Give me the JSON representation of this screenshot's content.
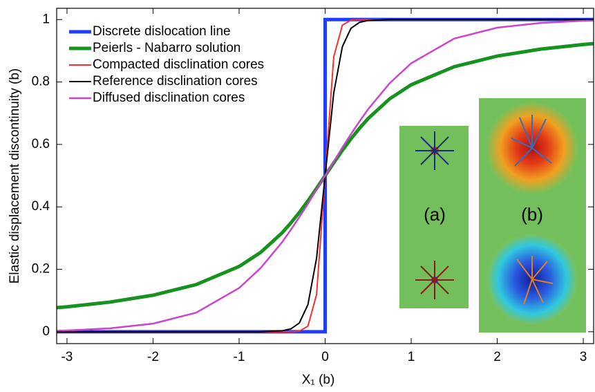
{
  "chart_data": {
    "type": "line",
    "xlabel": "X₁ (b)",
    "ylabel": "Elastic displacement discontinuity (b)",
    "xlim": [
      -3.12,
      3.12
    ],
    "ylim": [
      -0.038,
      1.036
    ],
    "xticks": [
      -3,
      -2,
      -1,
      0,
      1,
      2,
      3
    ],
    "yticks": [
      0,
      0.2,
      0.4,
      0.6,
      0.8,
      1
    ],
    "legend": "upper left",
    "annotations": [
      "(a)",
      "(b)"
    ],
    "x": [
      -3.12,
      -3,
      -2.5,
      -2,
      -1.5,
      -1,
      -0.75,
      -0.5,
      -0.4,
      -0.3,
      -0.2,
      -0.1,
      0,
      0.1,
      0.2,
      0.3,
      0.4,
      0.5,
      0.75,
      1,
      1.5,
      2,
      2.5,
      3,
      3.12
    ],
    "series": [
      {
        "name": "Discrete dislocation line",
        "color": "#1f3cff",
        "x": [
          -3.12,
          0,
          0,
          3.12
        ],
        "values": [
          0,
          0,
          1,
          1
        ]
      },
      {
        "name": "Peierls - Nabarro solution",
        "color": "#16921e",
        "values": [
          0.077,
          0.08,
          0.095,
          0.117,
          0.151,
          0.209,
          0.254,
          0.317,
          0.348,
          0.382,
          0.419,
          0.459,
          0.5,
          0.541,
          0.581,
          0.618,
          0.652,
          0.683,
          0.746,
          0.791,
          0.849,
          0.883,
          0.905,
          0.92,
          0.923
        ]
      },
      {
        "name": "Compacted disclination cores",
        "color": "#ff2a2a",
        "values": [
          0,
          0,
          0,
          0,
          0,
          0,
          0,
          0,
          0,
          0.002,
          0.018,
          0.119,
          0.5,
          0.881,
          0.982,
          0.998,
          1,
          1,
          1,
          1,
          1,
          1,
          1,
          1,
          1
        ]
      },
      {
        "name": "Reference disclination cores",
        "color": "#000000",
        "values": [
          0,
          0,
          0,
          0,
          0,
          0,
          0,
          0.003,
          0.009,
          0.028,
          0.087,
          0.235,
          0.5,
          0.765,
          0.913,
          0.972,
          0.991,
          0.997,
          1,
          1,
          1,
          1,
          1,
          1,
          1
        ]
      },
      {
        "name": "Diffused disclination cores",
        "color": "#cc44cc",
        "values": [
          0.003,
          0.004,
          0.011,
          0.026,
          0.061,
          0.14,
          0.204,
          0.287,
          0.326,
          0.367,
          0.41,
          0.455,
          0.5,
          0.545,
          0.59,
          0.633,
          0.674,
          0.713,
          0.796,
          0.86,
          0.939,
          0.974,
          0.989,
          0.996,
          0.997
        ]
      }
    ]
  }
}
